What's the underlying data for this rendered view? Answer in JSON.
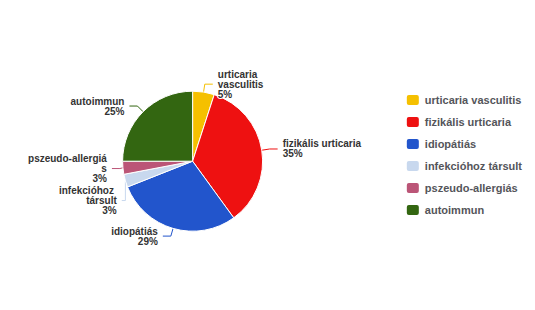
{
  "chart_data": {
    "type": "pie",
    "categories": [
      "urticaria vasculitis",
      "fizikális urticaria",
      "idiopátiás",
      "infekcióhoz társult",
      "pszeudo-allergiás",
      "autoimmun"
    ],
    "values": [
      5,
      35,
      29,
      3,
      3,
      25
    ],
    "value_labels": [
      "5%",
      "35%",
      "29%",
      "3%",
      "3%",
      "25%"
    ],
    "colors": [
      "#F5C000",
      "#EE1111",
      "#2255CC",
      "#C8D8EE",
      "#BB5577",
      "#336611"
    ],
    "data_labels": true,
    "legend": "right"
  }
}
